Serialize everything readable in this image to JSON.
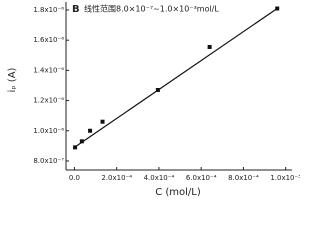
{
  "chart_data": {
    "type": "scatter",
    "annotations": [
      "B",
      "线性范围8.0×10⁻⁷~1.0×10⁻³mol/L"
    ],
    "x_label": "C (mol/L)",
    "y_label": "iₚ (A)",
    "xlim": [
      -4e-05,
      0.00103
    ],
    "ylim": [
      7.4e-07,
      1.853e-06
    ],
    "xticks": [
      {
        "value": 0,
        "label": "0.0"
      },
      {
        "value": 0.0002,
        "label": "2.0x10⁻⁴"
      },
      {
        "value": 0.0004,
        "label": "4.0x10⁻⁴"
      },
      {
        "value": 0.0006,
        "label": "6.0x10⁻⁴"
      },
      {
        "value": 0.0008,
        "label": "8.0x10⁻⁴"
      },
      {
        "value": 0.001,
        "label": "1.0x10⁻³"
      }
    ],
    "yticks": [
      {
        "value": 8e-07,
        "label": "8.0x10⁻⁷"
      },
      {
        "value": 1e-06,
        "label": "1.0x10⁻⁶"
      },
      {
        "value": 1.2e-06,
        "label": "1.2x10⁻⁶"
      },
      {
        "value": 1.4e-06,
        "label": "1.4x10⁻⁶"
      },
      {
        "value": 1.6e-06,
        "label": "1.6x10⁻⁶"
      },
      {
        "value": 1.8e-06,
        "label": "1.8x10⁻⁶"
      }
    ],
    "series": [
      {
        "style": "points",
        "color": "#111111",
        "x": [
          3e-06,
          3.5e-05,
          7.4e-05,
          0.000133,
          0.000395,
          0.00064,
          0.00096
        ],
        "values": [
          8.9e-07,
          9.3e-07,
          1e-06,
          1.06e-06,
          1.27e-06,
          1.555e-06,
          1.81e-06
        ]
      },
      {
        "style": "fit-line",
        "color": "#111111",
        "x": [
          0,
          0.00096
        ],
        "values": [
          8.9e-07,
          1.81e-06
        ]
      }
    ]
  }
}
